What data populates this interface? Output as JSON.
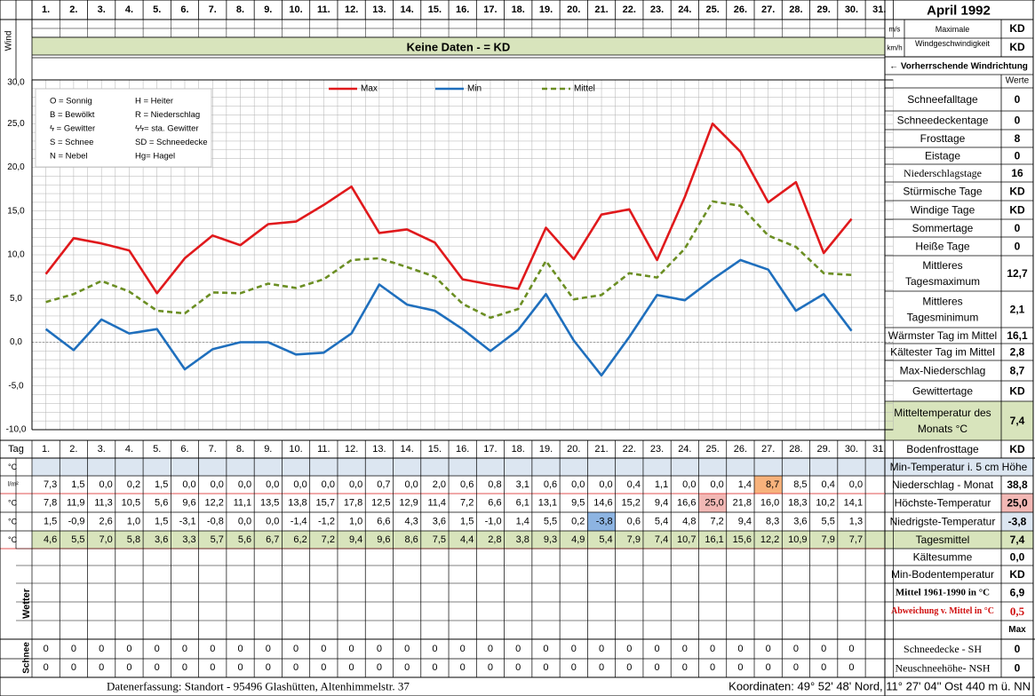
{
  "header": {
    "title": "April 1992",
    "wind_label": "Wind",
    "no_data_text": "Keine Daten -  = KD",
    "unit_ms": "m/s",
    "unit_kmh": "km/h",
    "max_wind_label_1": "Maximale",
    "max_wind_label_2": "Windgeschwindigkeit",
    "max_wind_ms": "KD",
    "max_wind_kmh": "KD",
    "prevailing_wind": "← Vorherrschende Windrichtung",
    "werte_label": "Werte"
  },
  "days": [
    "1.",
    "2.",
    "3.",
    "4.",
    "5.",
    "6.",
    "7.",
    "8.",
    "9.",
    "10.",
    "11.",
    "12.",
    "13.",
    "14.",
    "15.",
    "16.",
    "17.",
    "18.",
    "19.",
    "20.",
    "21.",
    "22.",
    "23.",
    "24.",
    "25.",
    "26.",
    "27.",
    "28.",
    "29.",
    "30.",
    "31."
  ],
  "legend": {
    "max": "Max",
    "min": "Min",
    "mittel": "Mittel",
    "symbols": [
      [
        "O = Sonnig",
        "H = Heiter"
      ],
      [
        "B = Bewölkt",
        "R = Niederschlag"
      ],
      [
        "ϟ = Gewitter",
        "ϟϟ= sta. Gewitter"
      ],
      [
        "S = Schnee",
        "SD = Schneedecke"
      ],
      [
        "N = Nebel",
        "Hg= Hagel"
      ]
    ]
  },
  "chart_data": {
    "type": "line",
    "x": [
      1,
      2,
      3,
      4,
      5,
      6,
      7,
      8,
      9,
      10,
      11,
      12,
      13,
      14,
      15,
      16,
      17,
      18,
      19,
      20,
      21,
      22,
      23,
      24,
      25,
      26,
      27,
      28,
      29,
      30
    ],
    "ylim": [
      -10,
      30
    ],
    "yticks": [
      "30,0",
      "25,0",
      "20,0",
      "15,0",
      "10,0",
      "5,0",
      "0,0",
      "-5,0",
      "-10,0"
    ],
    "grid": true,
    "legend_position": "top",
    "series": [
      {
        "name": "Max",
        "color": "#e0191c",
        "dash": false,
        "values": [
          7.8,
          11.9,
          11.3,
          10.5,
          5.6,
          9.6,
          12.2,
          11.1,
          13.5,
          13.8,
          15.7,
          17.8,
          12.5,
          12.9,
          11.4,
          7.2,
          6.6,
          6.1,
          13.1,
          9.5,
          14.6,
          15.2,
          9.4,
          16.6,
          25.0,
          21.8,
          16.0,
          18.3,
          10.2,
          14.1
        ]
      },
      {
        "name": "Min",
        "color": "#1f6fbd",
        "dash": false,
        "values": [
          1.5,
          -0.9,
          2.6,
          1.0,
          1.5,
          -3.1,
          -0.8,
          0.0,
          0.0,
          -1.4,
          -1.2,
          1.0,
          6.6,
          4.3,
          3.6,
          1.5,
          -1.0,
          1.4,
          5.5,
          0.2,
          -3.8,
          0.6,
          5.4,
          4.8,
          7.2,
          9.4,
          8.3,
          3.6,
          5.5,
          1.3
        ]
      },
      {
        "name": "Mittel",
        "color": "#6b8e23",
        "dash": true,
        "values": [
          4.6,
          5.5,
          7.0,
          5.8,
          3.6,
          3.3,
          5.7,
          5.6,
          6.7,
          6.2,
          7.2,
          9.4,
          9.6,
          8.6,
          7.5,
          4.4,
          2.8,
          3.8,
          9.3,
          4.9,
          5.4,
          7.9,
          7.4,
          10.7,
          16.1,
          15.6,
          12.2,
          10.9,
          7.9,
          7.7
        ]
      }
    ]
  },
  "table": {
    "tag_label": "Tag",
    "rows": [
      {
        "unit": "°C",
        "cells": [
          "",
          "",
          "",
          "",
          "",
          "",
          "",
          "",
          "",
          "",
          "",
          "",
          "",
          "",
          "",
          "",
          "",
          "",
          "",
          "",
          "",
          "",
          "",
          "",
          "",
          "",
          "",
          "",
          "",
          "",
          ""
        ]
      },
      {
        "unit": "l/m²",
        "cells": [
          "7,3",
          "1,5",
          "0,0",
          "0,2",
          "1,5",
          "0,0",
          "0,0",
          "0,0",
          "0,0",
          "0,0",
          "0,0",
          "0,0",
          "0,7",
          "0,0",
          "2,0",
          "0,6",
          "0,8",
          "3,1",
          "0,6",
          "0,0",
          "0,0",
          "0,4",
          "1,1",
          "0,0",
          "0,0",
          "1,4",
          "8,7",
          "8,5",
          "0,4",
          "0,0",
          ""
        ]
      },
      {
        "unit": "°C",
        "cells": [
          "7,8",
          "11,9",
          "11,3",
          "10,5",
          "5,6",
          "9,6",
          "12,2",
          "11,1",
          "13,5",
          "13,8",
          "15,7",
          "17,8",
          "12,5",
          "12,9",
          "11,4",
          "7,2",
          "6,6",
          "6,1",
          "13,1",
          "9,5",
          "14,6",
          "15,2",
          "9,4",
          "16,6",
          "25,0",
          "21,8",
          "16,0",
          "18,3",
          "10,2",
          "14,1",
          ""
        ]
      },
      {
        "unit": "°C",
        "cells": [
          "1,5",
          "-0,9",
          "2,6",
          "1,0",
          "1,5",
          "-3,1",
          "-0,8",
          "0,0",
          "0,0",
          "-1,4",
          "-1,2",
          "1,0",
          "6,6",
          "4,3",
          "3,6",
          "1,5",
          "-1,0",
          "1,4",
          "5,5",
          "0,2",
          "-3,8",
          "0,6",
          "5,4",
          "4,8",
          "7,2",
          "9,4",
          "8,3",
          "3,6",
          "5,5",
          "1,3",
          ""
        ]
      },
      {
        "unit": "°C",
        "cells": [
          "4,6",
          "5,5",
          "7,0",
          "5,8",
          "3,6",
          "3,3",
          "5,7",
          "5,6",
          "6,7",
          "6,2",
          "7,2",
          "9,4",
          "9,6",
          "8,6",
          "7,5",
          "4,4",
          "2,8",
          "3,8",
          "9,3",
          "4,9",
          "5,4",
          "7,9",
          "7,4",
          "10,7",
          "16,1",
          "15,6",
          "12,2",
          "10,9",
          "7,9",
          "7,7",
          ""
        ]
      }
    ],
    "wetter_label": "Wetter",
    "schnee_label": "Schnee",
    "snow_rows": [
      [
        "0",
        "0",
        "0",
        "0",
        "0",
        "0",
        "0",
        "0",
        "0",
        "0",
        "0",
        "0",
        "0",
        "0",
        "0",
        "0",
        "0",
        "0",
        "0",
        "0",
        "0",
        "0",
        "0",
        "0",
        "0",
        "0",
        "0",
        "0",
        "0",
        "0",
        ""
      ],
      [
        "0",
        "0",
        "0",
        "0",
        "0",
        "0",
        "0",
        "0",
        "0",
        "0",
        "0",
        "0",
        "0",
        "0",
        "0",
        "0",
        "0",
        "0",
        "0",
        "0",
        "0",
        "0",
        "0",
        "0",
        "0",
        "0",
        "0",
        "0",
        "0",
        "0",
        ""
      ]
    ]
  },
  "stats": [
    {
      "label": "Schneefalltage",
      "value": "0"
    },
    {
      "label": "Schneedeckentage",
      "value": "0"
    },
    {
      "label": "Frosttage",
      "value": "8"
    },
    {
      "label": "Eistage",
      "value": "0"
    },
    {
      "label": "Niederschlagstage",
      "value": "16"
    },
    {
      "label": "Stürmische Tage",
      "value": "KD"
    },
    {
      "label": "Windige Tage",
      "value": "KD"
    },
    {
      "label": "Sommertage",
      "value": "0"
    },
    {
      "label": "Heiße Tage",
      "value": "0"
    },
    {
      "label": "Mittleres Tagesmaximum",
      "value": "12,7"
    },
    {
      "label": "Mittleres Tagesminimum",
      "value": "2,1"
    },
    {
      "label": "Wärmster Tag im Mittel",
      "value": "16,1"
    },
    {
      "label": "Kältester Tag im Mittel",
      "value": "2,8"
    },
    {
      "label": "Max-Niederschlag",
      "value": "8,7"
    },
    {
      "label": "Gewittertage",
      "value": "KD"
    },
    {
      "label": "Mitteltemperatur des Monats °C",
      "value": "7,4"
    },
    {
      "label": "Bodenfrosttage",
      "value": "KD"
    }
  ],
  "lower_stats": [
    {
      "label": "Min-Temperatur i. 5 cm Höhe",
      "value": ""
    },
    {
      "label": "Niederschlag - Monat",
      "value": "38,8"
    },
    {
      "label": "Höchste-Temperatur",
      "value": "25,0"
    },
    {
      "label": "Niedrigste-Temperatur",
      "value": "-3,8"
    },
    {
      "label": "Tagesmittel",
      "value": "7,4"
    },
    {
      "label": "Kältesumme",
      "value": "0,0"
    },
    {
      "label": "Min-Bodentemperatur",
      "value": "KD"
    },
    {
      "label": "Mittel 1961-1990 in °C",
      "value": "6,9"
    },
    {
      "label": "Abweichung v. Mittel in °C",
      "value": "0,5"
    },
    {
      "label": "",
      "value": "Max"
    },
    {
      "label": "Schneedecke -   SH",
      "value": "0"
    },
    {
      "label": "Neuschneehöhe- NSH",
      "value": "0"
    }
  ],
  "footer": {
    "left": "Datenerfassung:  Standort -  95496  Glashütten, Altenhimmelstr. 37",
    "right": "Koordinaten:  49° 52' 48' Nord,  11° 27' 04'' Ost   440 m ü. NN"
  },
  "colors": {
    "green_band": "#d8e4bc",
    "blue_band": "#dce6f1",
    "highlight_orange": "#f7b27b",
    "highlight_pink": "#f2b8b5",
    "highlight_blue": "#8db4e2",
    "grid": "#b0b0b0",
    "red_text": "#d01010"
  }
}
